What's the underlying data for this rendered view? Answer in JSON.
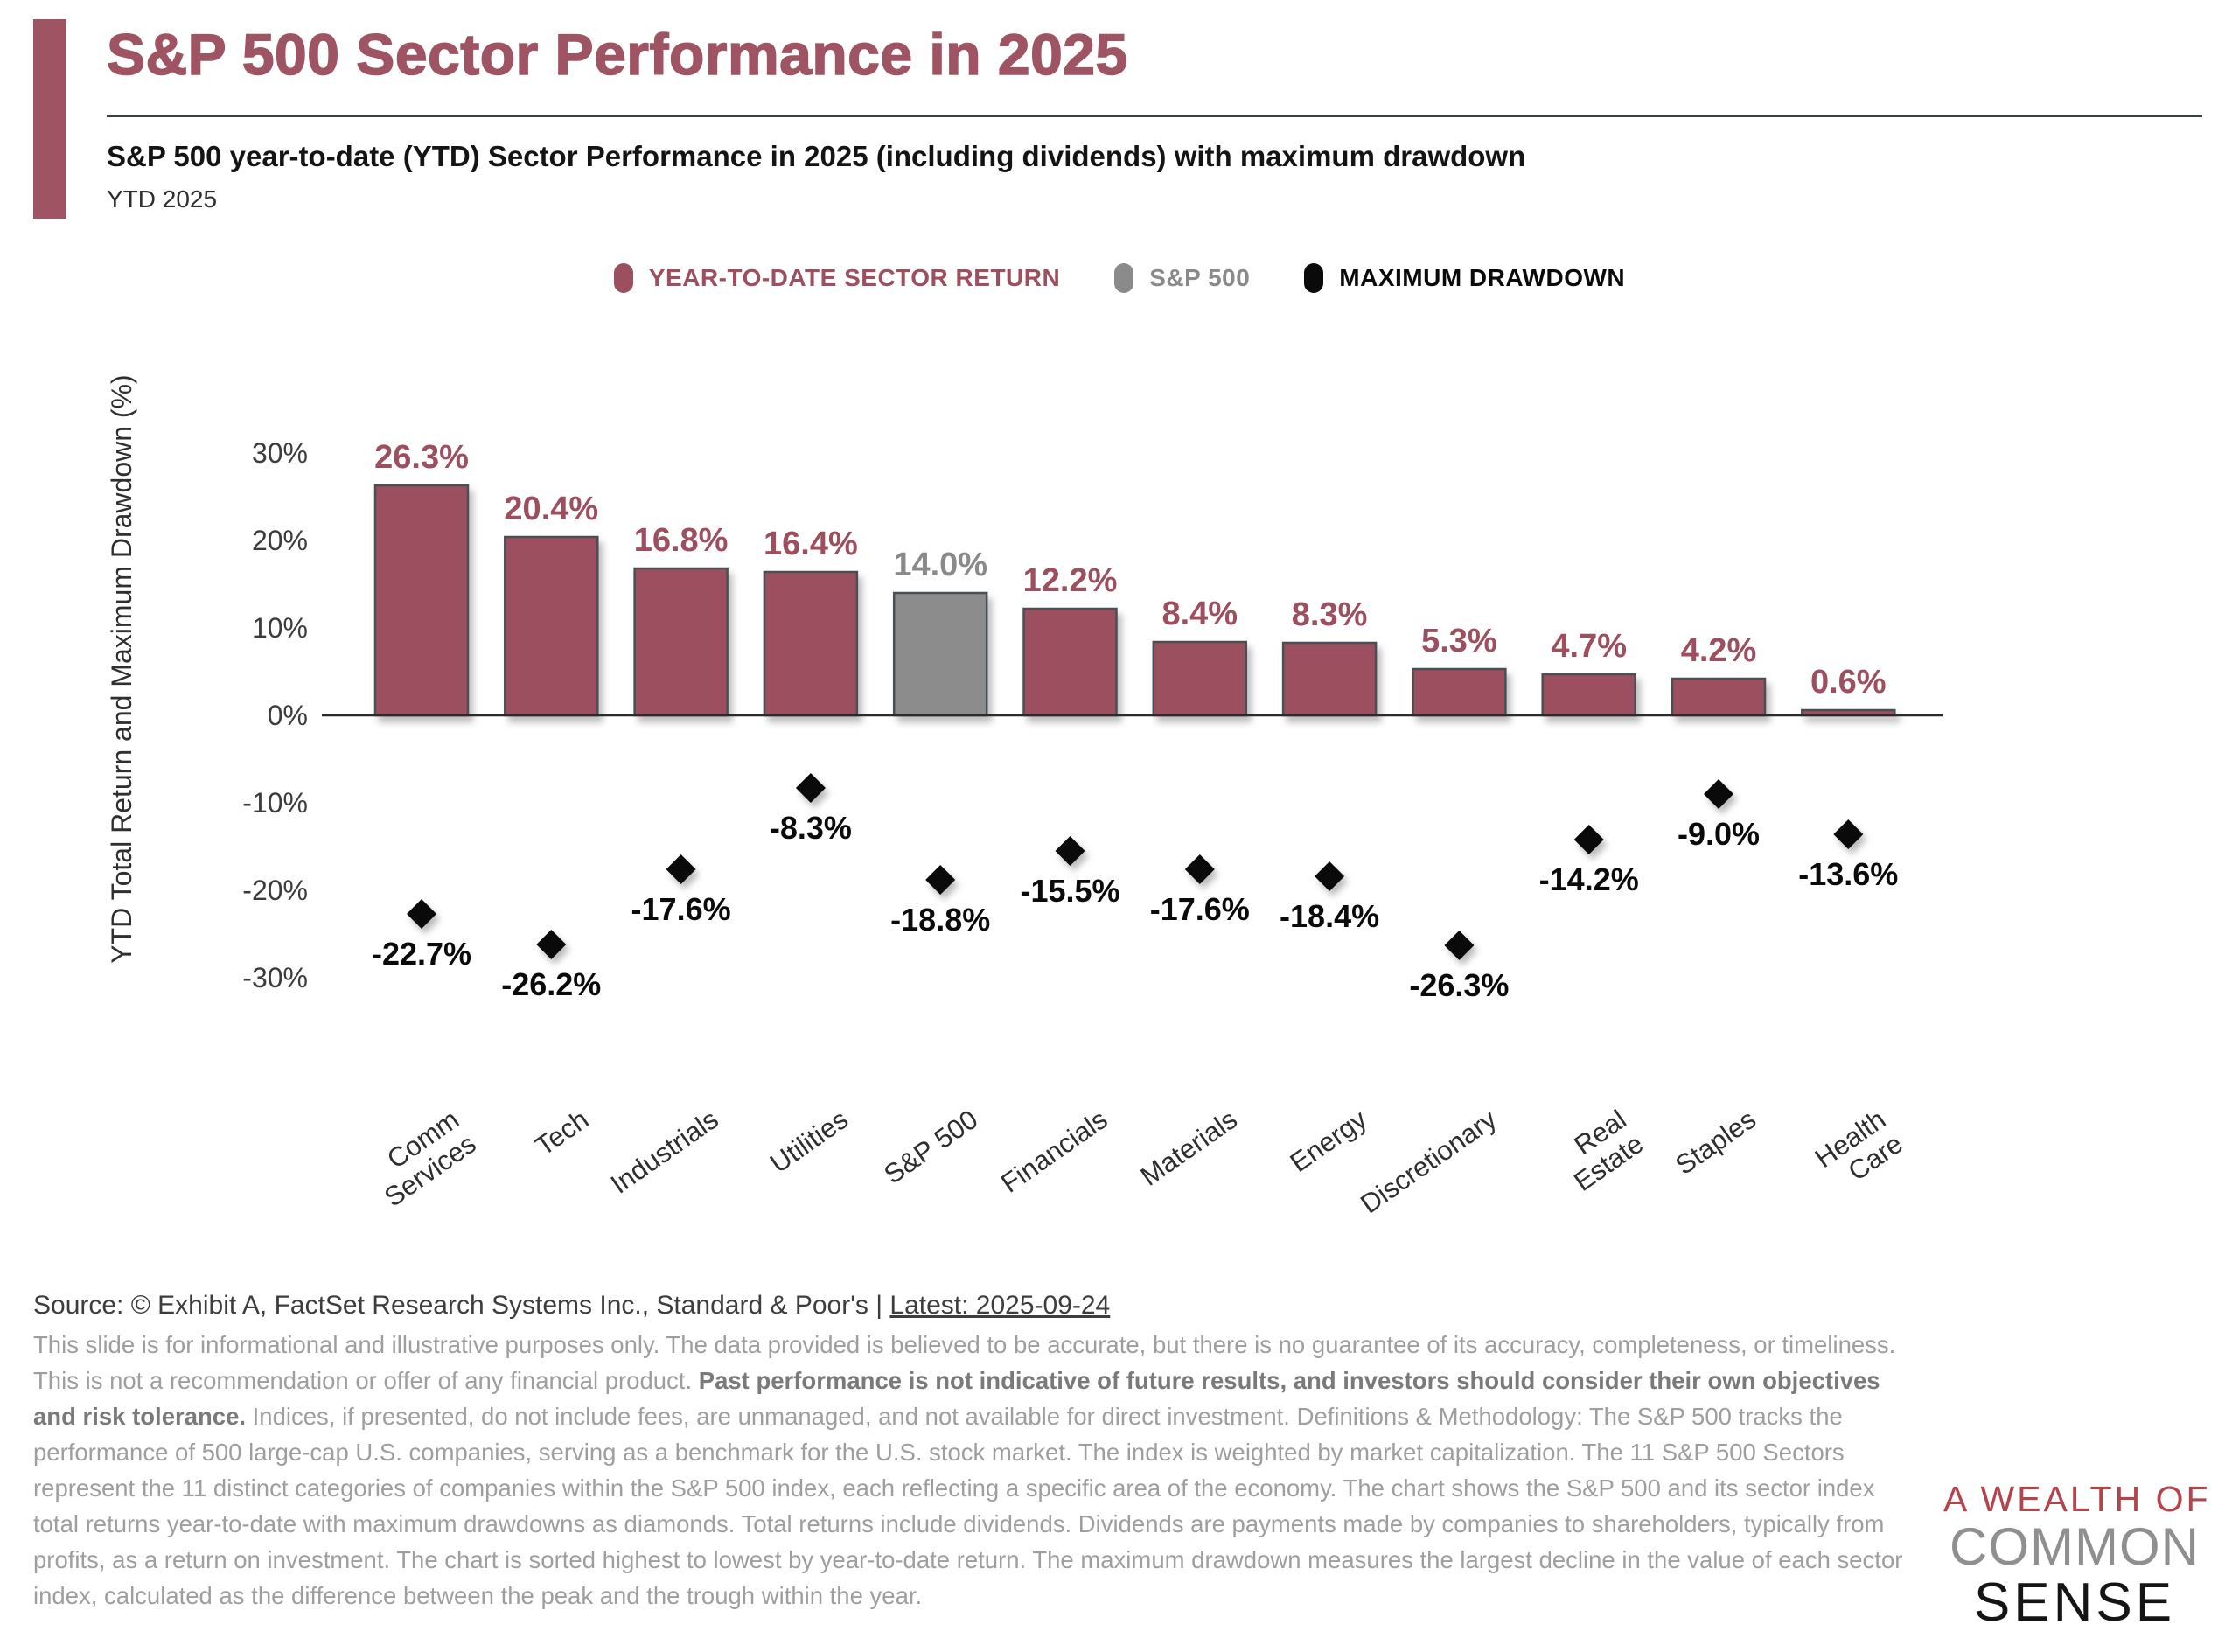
{
  "header": {
    "title": "S&P 500 Sector Performance in 2025",
    "subtitle": "S&P 500 year-to-date (YTD) Sector Performance in 2025 (including dividends) with maximum drawdown",
    "period_label": "YTD 2025",
    "accent_color": "#9E5463"
  },
  "legend": {
    "items": [
      {
        "label": "YEAR-TO-DATE SECTOR RETURN",
        "color": "#9C4F5E"
      },
      {
        "label": "S&P 500",
        "color": "#8A8A8A"
      },
      {
        "label": "MAXIMUM DRAWDOWN",
        "color": "#0A0A0A"
      }
    ]
  },
  "chart_data": {
    "type": "bar",
    "title": "S&P 500 Sector Performance in 2025",
    "xlabel": "",
    "ylabel": "YTD Total Return and Maximum Drawdown (%)",
    "ylim": [
      -33,
      32
    ],
    "ytick_values": [
      30,
      20,
      10,
      0,
      -10,
      -20,
      -30
    ],
    "grid": false,
    "legend_position": "top",
    "categories": [
      "Comm\nServices",
      "Tech",
      "Industrials",
      "Utilities",
      "S&P 500",
      "Financials",
      "Materials",
      "Energy",
      "Discretionary",
      "Real\nEstate",
      "Staples",
      "Health\nCare"
    ],
    "series": [
      {
        "name": "YEAR-TO-DATE SECTOR RETURN",
        "type": "bar",
        "color": "#9C4F5E",
        "values": [
          26.3,
          20.4,
          16.8,
          16.4,
          14.0,
          12.2,
          8.4,
          8.3,
          5.3,
          4.7,
          4.2,
          0.6
        ]
      },
      {
        "name": "MAXIMUM DRAWDOWN",
        "type": "scatter",
        "marker": "diamond",
        "color": "#0A0A0A",
        "values": [
          -22.7,
          -26.2,
          -17.6,
          -8.3,
          -18.8,
          -15.5,
          -17.6,
          -18.4,
          -26.3,
          -14.2,
          -9.0,
          -13.6
        ]
      }
    ],
    "benchmark_category": "S&P 500",
    "benchmark_color": "#8C8C8C",
    "value_suffix": "%"
  },
  "footer": {
    "source_prefix": "Source: © Exhibit A, FactSet Research Systems Inc., Standard & Poor's | ",
    "source_latest": "Latest: 2025-09-24",
    "disclaimer_1": "This slide is for informational and illustrative purposes only. The data provided is believed to be accurate, but there is no guarantee of its accuracy, completeness, or timeliness. This is not a recommendation or offer of any financial product. ",
    "disclaimer_bold": "Past performance is not indicative of future results, and investors should consider their own objectives and risk tolerance.",
    "disclaimer_2": " Indices, if presented, do not include fees, are unmanaged, and not available for direct investment. Definitions & Methodology: The S&P 500 tracks the performance of 500 large-cap U.S. companies, serving as a benchmark for the U.S. stock market. The index is weighted by market capitalization. The 11 S&P 500 Sectors represent the 11 distinct categories of companies within the S&P 500 index, each reflecting a specific area of the economy. The chart shows the S&P 500 and its sector index total returns year-to-date with maximum drawdowns as diamonds. Total returns include dividends. Dividends are payments made by companies to shareholders, typically from profits, as a return on investment. The chart is sorted highest to lowest by year-to-date return. The maximum drawdown measures the largest decline in the value of each sector index, calculated as the difference between the peak and the trough within the year."
  },
  "logo": {
    "line1": "A WEALTH OF",
    "line1_color": "#B4444C",
    "line2": "COMMON",
    "line2_color": "#8F8F8F",
    "line3": "SENSE",
    "line3_color": "#151515"
  }
}
